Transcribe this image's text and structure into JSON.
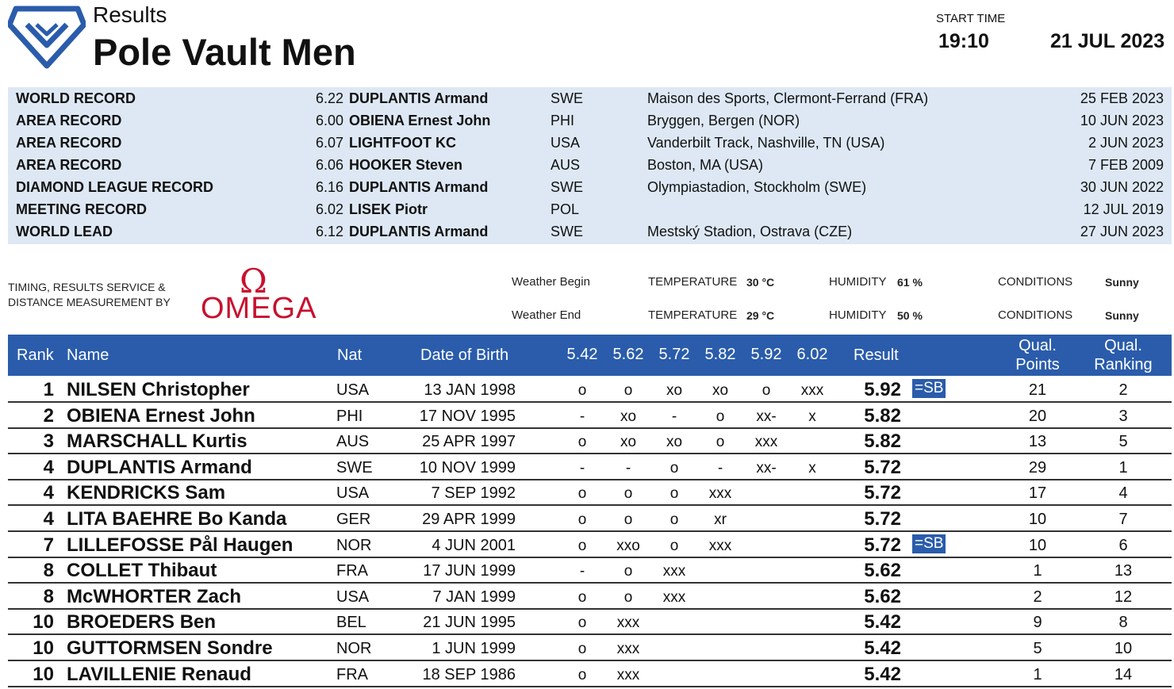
{
  "header": {
    "subtitle": "Results",
    "title": "Pole Vault Men",
    "start_label": "START TIME",
    "start_time": "19:10",
    "date": "21 JUL 2023"
  },
  "records": [
    {
      "label": "WORLD RECORD",
      "mark": "6.22",
      "name": "DUPLANTIS Armand",
      "nat": "SWE",
      "venue": "Maison des Sports, Clermont-Ferrand (FRA)",
      "date": "25 FEB 2023"
    },
    {
      "label": "AREA RECORD",
      "mark": "6.00",
      "name": "OBIENA Ernest John",
      "nat": "PHI",
      "venue": "Bryggen, Bergen (NOR)",
      "date": "10 JUN 2023"
    },
    {
      "label": "AREA RECORD",
      "mark": "6.07",
      "name": "LIGHTFOOT KC",
      "nat": "USA",
      "venue": "Vanderbilt Track, Nashville, TN (USA)",
      "date": "2 JUN 2023"
    },
    {
      "label": "AREA RECORD",
      "mark": "6.06",
      "name": "HOOKER Steven",
      "nat": "AUS",
      "venue": "Boston, MA (USA)",
      "date": "7 FEB 2009"
    },
    {
      "label": "DIAMOND LEAGUE RECORD",
      "mark": "6.16",
      "name": "DUPLANTIS Armand",
      "nat": "SWE",
      "venue": "Olympiastadion, Stockholm (SWE)",
      "date": "30 JUN 2022"
    },
    {
      "label": "MEETING RECORD",
      "mark": "6.02",
      "name": "LISEK Piotr",
      "nat": "POL",
      "venue": "",
      "date": "12 JUL 2019"
    },
    {
      "label": "WORLD LEAD",
      "mark": "6.12",
      "name": "DUPLANTIS Armand",
      "nat": "SWE",
      "venue": "Mestský Stadion, Ostrava (CZE)",
      "date": "27 JUN 2023"
    }
  ],
  "timing": {
    "line1": "TIMING, RESULTS SERVICE &",
    "line2": "DISTANCE MEASUREMENT BY",
    "brand_symbol": "Ω",
    "brand": "OMEGA"
  },
  "weather": {
    "begin": {
      "label": "Weather Begin",
      "temp_label": "TEMPERATURE",
      "temp": "30 °C",
      "hum_label": "HUMIDITY",
      "hum": "61 %",
      "cond_label": "CONDITIONS",
      "cond": "Sunny"
    },
    "end": {
      "label": "Weather End",
      "temp_label": "TEMPERATURE",
      "temp": "29 °C",
      "hum_label": "HUMIDITY",
      "hum": "50 %",
      "cond_label": "CONDITIONS",
      "cond": "Sunny"
    }
  },
  "table": {
    "headers": {
      "rank": "Rank",
      "name": "Name",
      "nat": "Nat",
      "dob": "Date of Birth",
      "heights": [
        "5.42",
        "5.62",
        "5.72",
        "5.82",
        "5.92",
        "6.02"
      ],
      "result": "Result",
      "qual_points_1": "Qual.",
      "qual_points_2": "Points",
      "qual_rank_1": "Qual.",
      "qual_rank_2": "Ranking"
    },
    "rows": [
      {
        "rank": "1",
        "name": "NILSEN Christopher",
        "nat": "USA",
        "dob": "13 JAN 1998",
        "attempts": [
          "o",
          "o",
          "xo",
          "xo",
          "o",
          "xxx"
        ],
        "result": "5.92",
        "note": "=SB",
        "points": "21",
        "qrank": "2"
      },
      {
        "rank": "2",
        "name": "OBIENA Ernest John",
        "nat": "PHI",
        "dob": "17 NOV 1995",
        "attempts": [
          "-",
          "xo",
          "-",
          "o",
          "xx-",
          "x"
        ],
        "result": "5.82",
        "note": "",
        "points": "20",
        "qrank": "3"
      },
      {
        "rank": "3",
        "name": "MARSCHALL Kurtis",
        "nat": "AUS",
        "dob": "25 APR 1997",
        "attempts": [
          "o",
          "xo",
          "xo",
          "o",
          "xxx",
          ""
        ],
        "result": "5.82",
        "note": "",
        "points": "13",
        "qrank": "5"
      },
      {
        "rank": "4",
        "name": "DUPLANTIS Armand",
        "nat": "SWE",
        "dob": "10 NOV 1999",
        "attempts": [
          "-",
          "-",
          "o",
          "-",
          "xx-",
          "x"
        ],
        "result": "5.72",
        "note": "",
        "points": "29",
        "qrank": "1"
      },
      {
        "rank": "4",
        "name": "KENDRICKS Sam",
        "nat": "USA",
        "dob": "7 SEP 1992",
        "attempts": [
          "o",
          "o",
          "o",
          "xxx",
          "",
          ""
        ],
        "result": "5.72",
        "note": "",
        "points": "17",
        "qrank": "4"
      },
      {
        "rank": "4",
        "name": "LITA BAEHRE Bo Kanda",
        "nat": "GER",
        "dob": "29 APR 1999",
        "attempts": [
          "o",
          "o",
          "o",
          "xr",
          "",
          ""
        ],
        "result": "5.72",
        "note": "",
        "points": "10",
        "qrank": "7"
      },
      {
        "rank": "7",
        "name": "LILLEFOSSE Pål Haugen",
        "nat": "NOR",
        "dob": "4 JUN 2001",
        "attempts": [
          "o",
          "xxo",
          "o",
          "xxx",
          "",
          ""
        ],
        "result": "5.72",
        "note": "=SB",
        "points": "10",
        "qrank": "6"
      },
      {
        "rank": "8",
        "name": "COLLET Thibaut",
        "nat": "FRA",
        "dob": "17 JUN 1999",
        "attempts": [
          "-",
          "o",
          "xxx",
          "",
          "",
          ""
        ],
        "result": "5.62",
        "note": "",
        "points": "1",
        "qrank": "13"
      },
      {
        "rank": "8",
        "name": "McWHORTER Zach",
        "nat": "USA",
        "dob": "7 JAN 1999",
        "attempts": [
          "o",
          "o",
          "xxx",
          "",
          "",
          ""
        ],
        "result": "5.62",
        "note": "",
        "points": "2",
        "qrank": "12"
      },
      {
        "rank": "10",
        "name": "BROEDERS Ben",
        "nat": "BEL",
        "dob": "21 JUN 1995",
        "attempts": [
          "o",
          "xxx",
          "",
          "",
          "",
          ""
        ],
        "result": "5.42",
        "note": "",
        "points": "9",
        "qrank": "8"
      },
      {
        "rank": "10",
        "name": "GUTTORMSEN Sondre",
        "nat": "NOR",
        "dob": "1 JUN 1999",
        "attempts": [
          "o",
          "xxx",
          "",
          "",
          "",
          ""
        ],
        "result": "5.42",
        "note": "",
        "points": "5",
        "qrank": "10"
      },
      {
        "rank": "10",
        "name": "LAVILLENIE Renaud",
        "nat": "FRA",
        "dob": "18 SEP 1986",
        "attempts": [
          "o",
          "xxx",
          "",
          "",
          "",
          ""
        ],
        "result": "5.42",
        "note": "",
        "points": "1",
        "qrank": "14"
      }
    ]
  },
  "colors": {
    "accent": "#2a5cab",
    "records_bg": "#dde8f4",
    "brand": "#c8102e"
  }
}
